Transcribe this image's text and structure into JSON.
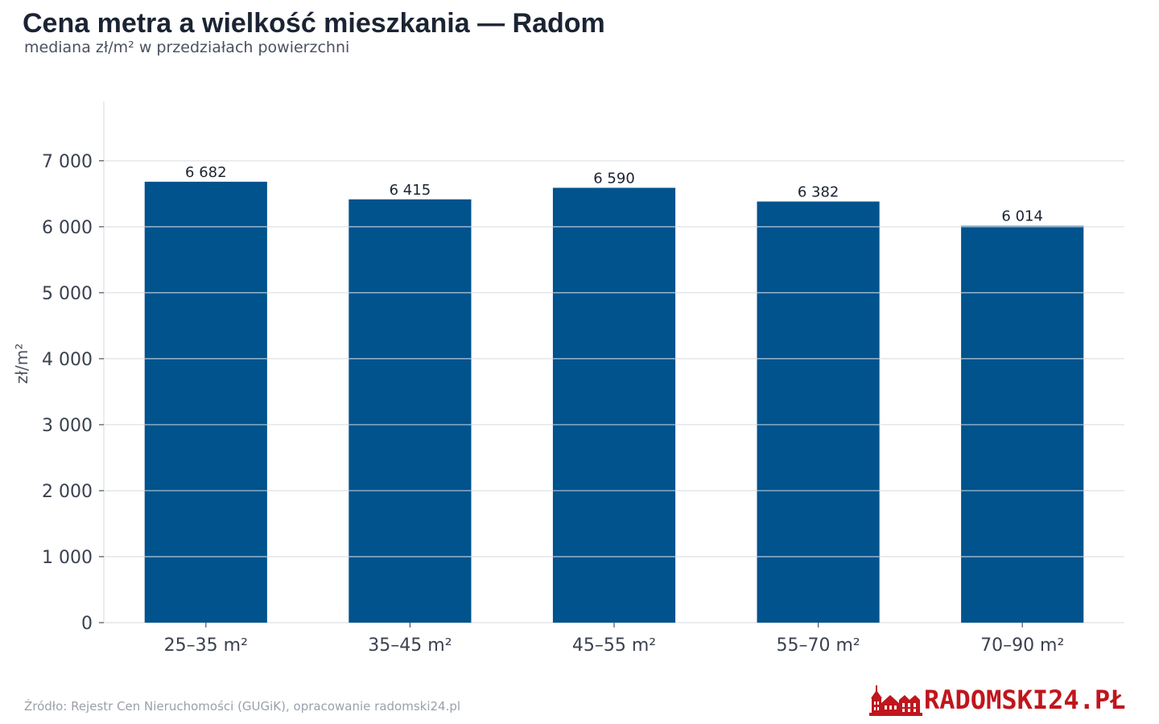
{
  "header": {
    "title": "Cena metra a wielkość mieszkania — Radom",
    "subtitle": "mediana zł/m² w przedziałach powierzchni"
  },
  "footer": {
    "source": "Źródło: Rejestr Cen Nieruchomości (GUGiK), opracowanie radomski24.pl",
    "logo_text": "RADOMSKI24.PŁ"
  },
  "colors": {
    "bar": "#00538c",
    "grid": "#e4e6ea",
    "title": "#1b2433",
    "logo": "#c0161d"
  },
  "chart_data": {
    "type": "bar",
    "title": "Cena metra a wielkość mieszkania — Radom",
    "subtitle": "mediana zł/m² w przedziałach powierzchni",
    "xlabel": "",
    "ylabel": "zł/m²",
    "categories": [
      "25–35 m²",
      "35–45 m²",
      "45–55 m²",
      "55–70 m²",
      "70–90 m²"
    ],
    "values": [
      6682,
      6415,
      6590,
      6382,
      6014
    ],
    "value_labels": [
      "6 682",
      "6 415",
      "6 590",
      "6 382",
      "6 014"
    ],
    "yticks": [
      0,
      1000,
      2000,
      3000,
      4000,
      5000,
      6000,
      7000
    ],
    "ytick_labels": [
      "0",
      "1 000",
      "2 000",
      "3 000",
      "4 000",
      "5 000",
      "6 000",
      "7 000"
    ],
    "ylim": [
      0,
      7900
    ],
    "grid": true,
    "legend": "none"
  }
}
